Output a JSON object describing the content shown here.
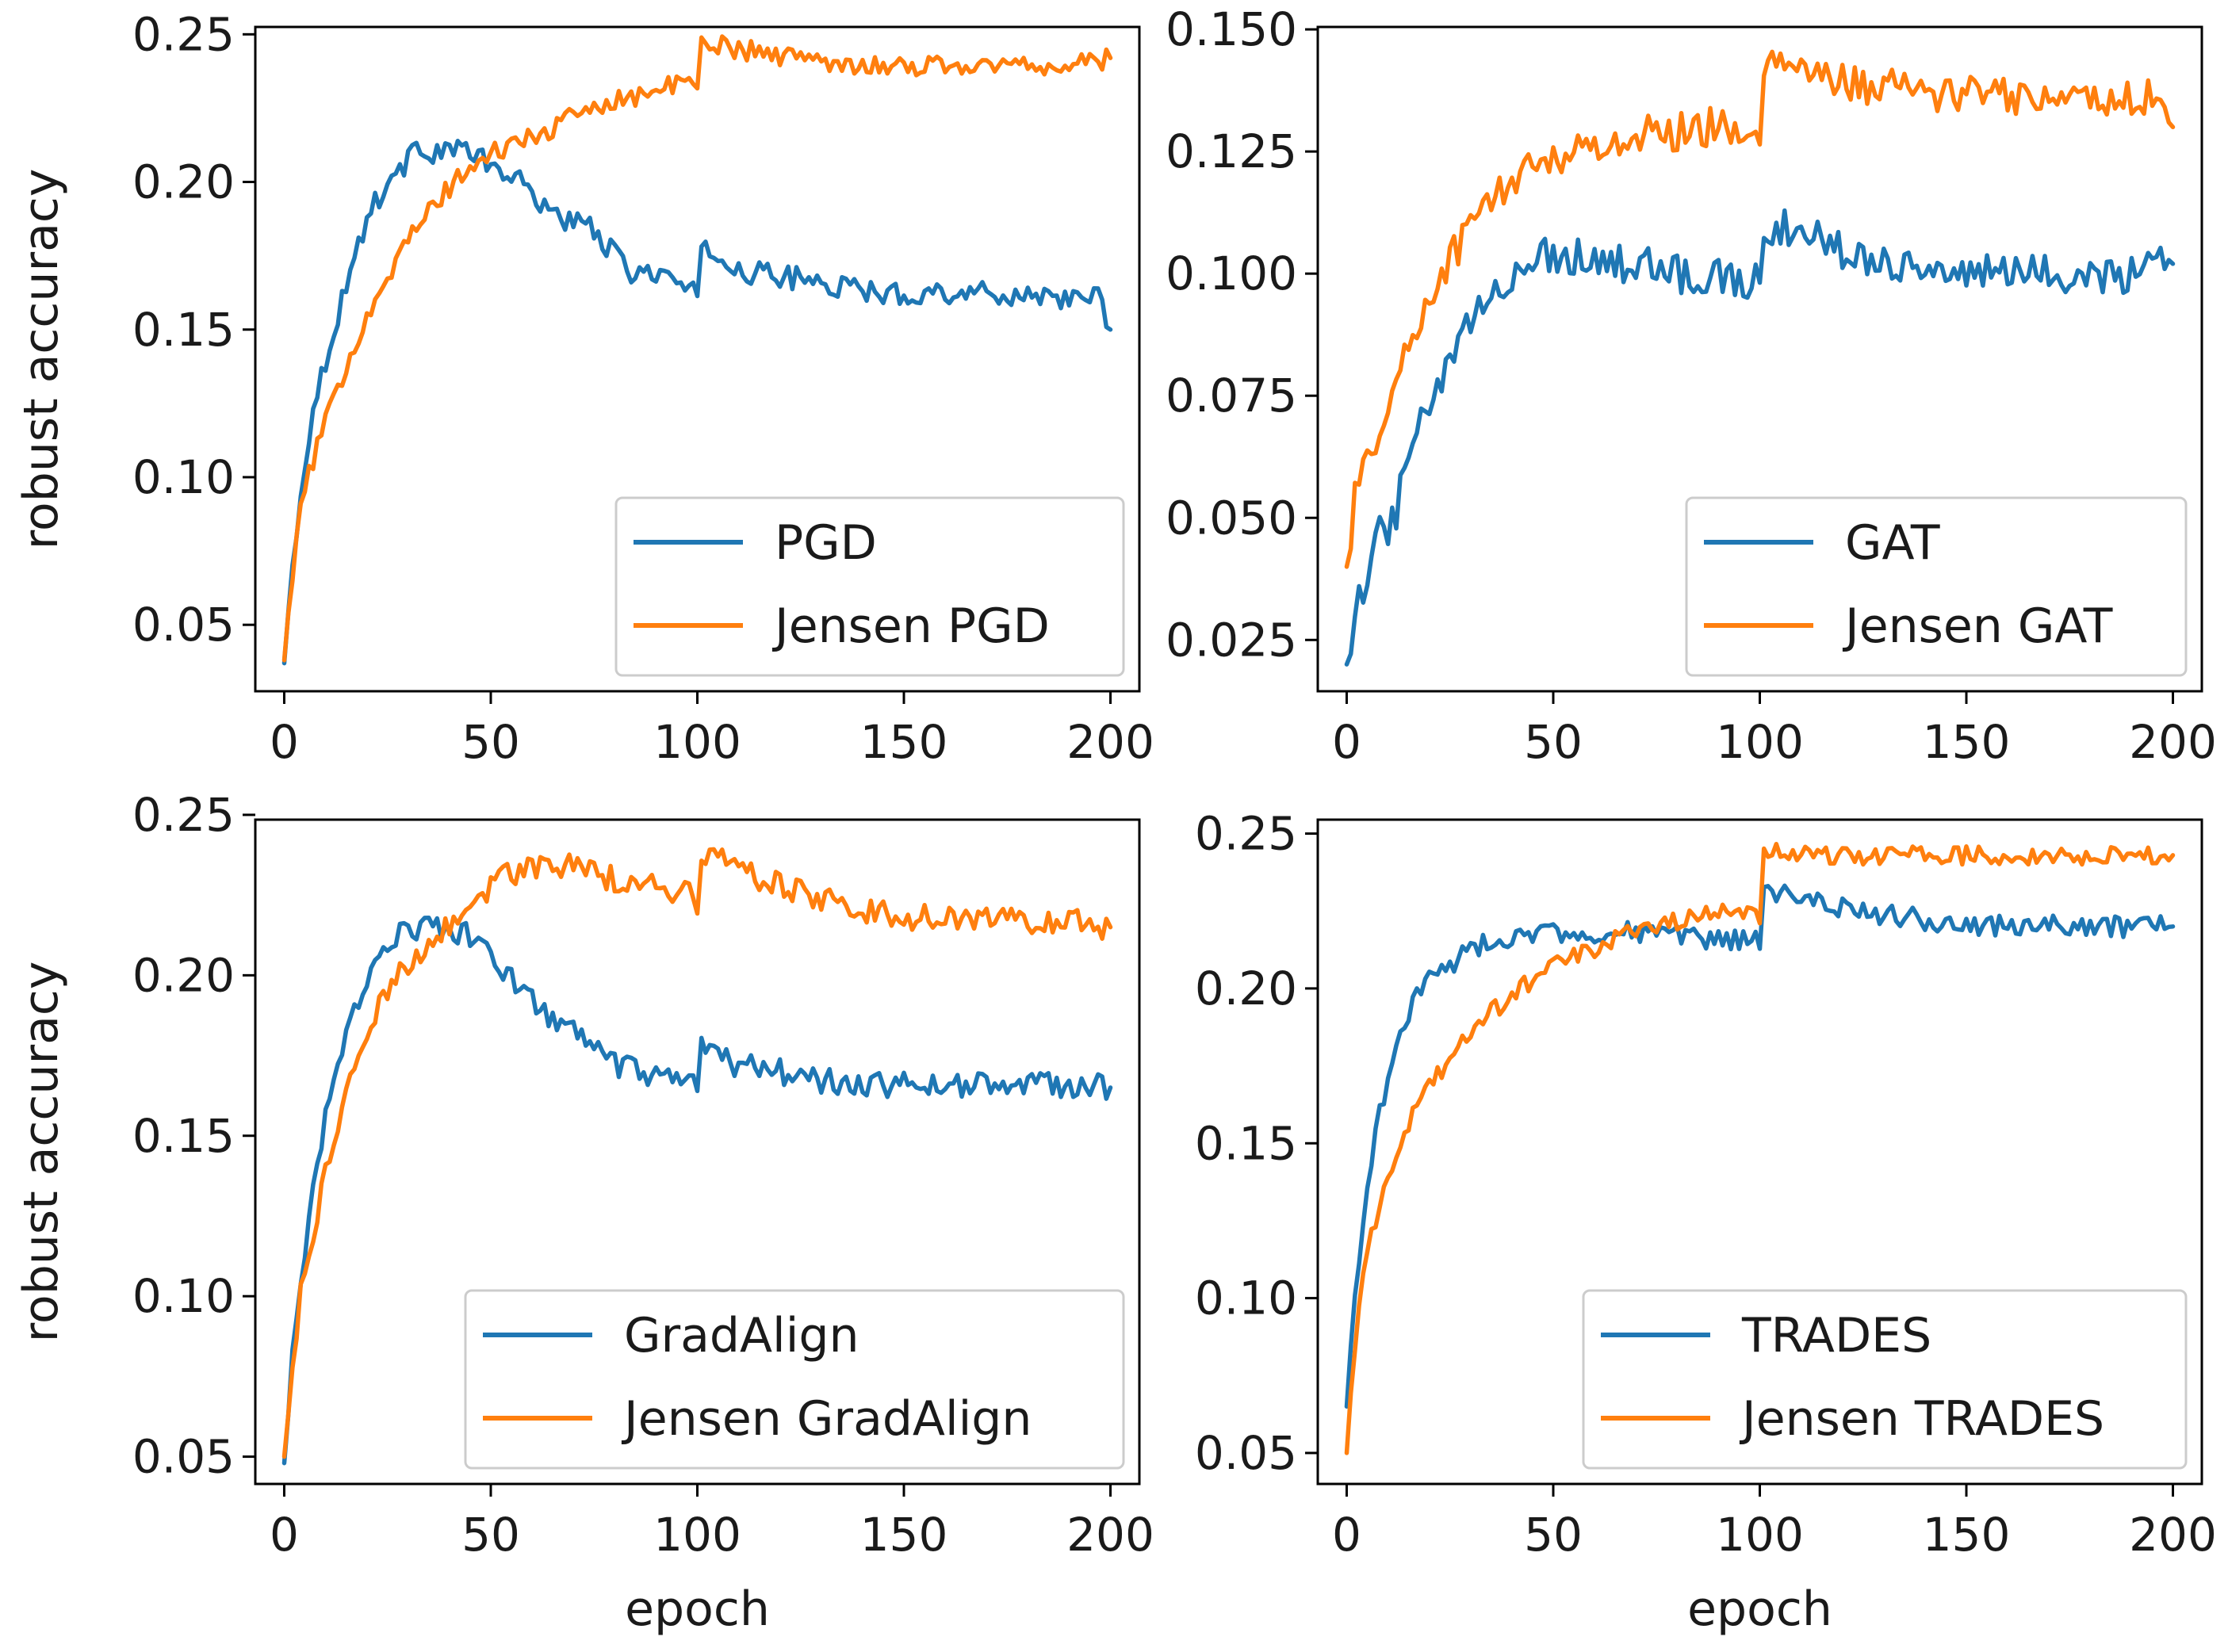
{
  "figure": {
    "background": "#ffffff"
  },
  "colors": {
    "series_a": "#1f77b4",
    "series_b": "#ff7f0e",
    "axis": "#000000",
    "legend_border": "#cccccc"
  },
  "chart_data": [
    {
      "type": "line",
      "panel": "top-left",
      "xlabel": "",
      "ylabel": "robust accuracy",
      "xlim": [
        -7,
        207
      ],
      "ylim": [
        0.0275,
        0.2525
      ],
      "xticks": [
        0,
        50,
        100,
        150,
        200
      ],
      "xtick_labels": [
        "0",
        "50",
        "100",
        "150",
        "200"
      ],
      "yticks": [
        0.05,
        0.1,
        0.15,
        0.2,
        0.25
      ],
      "ytick_labels": [
        "0.05",
        "0.10",
        "0.15",
        "0.20",
        "0.25"
      ],
      "legend": {
        "location": "lower right",
        "entries": [
          "PGD",
          "Jensen PGD"
        ]
      },
      "series": [
        {
          "name": "PGD",
          "color": "#1f77b4",
          "x": [
            0,
            2,
            4,
            6,
            8,
            10,
            13,
            16,
            20,
            25,
            30,
            33,
            36,
            40,
            45,
            50,
            55,
            60,
            65,
            70,
            75,
            80,
            85,
            90,
            95,
            99,
            100,
            101,
            105,
            110,
            120,
            130,
            140,
            150,
            160,
            170,
            180,
            190,
            197,
            200
          ],
          "values": [
            0.037,
            0.07,
            0.095,
            0.115,
            0.128,
            0.14,
            0.155,
            0.17,
            0.188,
            0.2,
            0.207,
            0.213,
            0.21,
            0.212,
            0.21,
            0.205,
            0.202,
            0.196,
            0.19,
            0.186,
            0.184,
            0.175,
            0.168,
            0.17,
            0.166,
            0.162,
            0.158,
            0.178,
            0.175,
            0.17,
            0.168,
            0.166,
            0.163,
            0.162,
            0.163,
            0.162,
            0.162,
            0.161,
            0.16,
            0.15
          ],
          "noise": 0.004
        },
        {
          "name": "Jensen PGD",
          "color": "#ff7f0e",
          "x": [
            0,
            2,
            4,
            6,
            8,
            10,
            13,
            16,
            20,
            25,
            30,
            35,
            40,
            45,
            50,
            55,
            60,
            65,
            70,
            75,
            80,
            85,
            90,
            95,
            99,
            100,
            101,
            105,
            110,
            120,
            130,
            140,
            150,
            160,
            170,
            180,
            190,
            200
          ],
          "values": [
            0.038,
            0.068,
            0.088,
            0.102,
            0.11,
            0.118,
            0.13,
            0.142,
            0.155,
            0.168,
            0.18,
            0.19,
            0.198,
            0.205,
            0.209,
            0.213,
            0.215,
            0.218,
            0.222,
            0.226,
            0.228,
            0.229,
            0.231,
            0.233,
            0.234,
            0.232,
            0.246,
            0.247,
            0.245,
            0.243,
            0.241,
            0.24,
            0.239,
            0.24,
            0.239,
            0.24,
            0.239,
            0.242
          ],
          "noise": 0.0035
        }
      ]
    },
    {
      "type": "line",
      "panel": "top-right",
      "xlabel": "",
      "ylabel": "",
      "xlim": [
        -7,
        207
      ],
      "ylim": [
        0.0145,
        0.1505
      ],
      "xticks": [
        0,
        50,
        100,
        150,
        200
      ],
      "xtick_labels": [
        "0",
        "50",
        "100",
        "150",
        "200"
      ],
      "yticks": [
        0.025,
        0.05,
        0.075,
        0.1,
        0.125,
        0.15
      ],
      "ytick_labels": [
        "0.025",
        "0.050",
        "0.075",
        "0.100",
        "0.125",
        "0.150"
      ],
      "legend": {
        "location": "lower right",
        "entries": [
          "GAT",
          "Jensen GAT"
        ]
      },
      "series": [
        {
          "name": "GAT",
          "color": "#1f77b4",
          "x": [
            0,
            2,
            5,
            8,
            10,
            15,
            20,
            25,
            30,
            35,
            40,
            45,
            50,
            55,
            60,
            65,
            70,
            75,
            80,
            85,
            90,
            95,
            99,
            100,
            101,
            105,
            110,
            120,
            130,
            140,
            150,
            160,
            170,
            180,
            190,
            200
          ],
          "values": [
            0.02,
            0.032,
            0.035,
            0.05,
            0.045,
            0.062,
            0.073,
            0.081,
            0.09,
            0.095,
            0.1,
            0.103,
            0.104,
            0.104,
            0.103,
            0.102,
            0.102,
            0.101,
            0.1,
            0.1,
            0.099,
            0.099,
            0.098,
            0.096,
            0.11,
            0.11,
            0.108,
            0.105,
            0.103,
            0.101,
            0.1,
            0.1,
            0.1,
            0.1,
            0.1,
            0.102
          ],
          "noise": 0.004
        },
        {
          "name": "Jensen GAT",
          "color": "#ff7f0e",
          "x": [
            0,
            2,
            5,
            8,
            10,
            15,
            20,
            25,
            30,
            35,
            40,
            45,
            50,
            55,
            60,
            65,
            70,
            75,
            80,
            85,
            90,
            95,
            99,
            100,
            101,
            105,
            110,
            120,
            130,
            140,
            150,
            160,
            170,
            180,
            190,
            197,
            200
          ],
          "values": [
            0.04,
            0.055,
            0.06,
            0.07,
            0.072,
            0.085,
            0.095,
            0.103,
            0.11,
            0.115,
            0.119,
            0.122,
            0.124,
            0.125,
            0.126,
            0.127,
            0.128,
            0.129,
            0.129,
            0.13,
            0.13,
            0.13,
            0.13,
            0.128,
            0.14,
            0.143,
            0.142,
            0.139,
            0.138,
            0.137,
            0.137,
            0.136,
            0.136,
            0.136,
            0.136,
            0.136,
            0.13
          ],
          "noise": 0.004
        }
      ]
    },
    {
      "type": "line",
      "panel": "bottom-left",
      "xlabel": "epoch",
      "ylabel": "robust accuracy",
      "xlim": [
        -7,
        207
      ],
      "ylim": [
        0.0415,
        0.2485
      ],
      "xticks": [
        0,
        50,
        100,
        150,
        200
      ],
      "xtick_labels": [
        "0",
        "50",
        "100",
        "150",
        "200"
      ],
      "yticks": [
        0.05,
        0.1,
        0.15,
        0.2,
        0.25
      ],
      "ytick_labels": [
        "0.05",
        "0.10",
        "0.15",
        "0.20",
        "0.25"
      ],
      "legend": {
        "location": "lower right",
        "entries": [
          "GradAlign",
          "Jensen GradAlign"
        ]
      },
      "series": [
        {
          "name": "GradAlign",
          "color": "#1f77b4",
          "x": [
            0,
            2,
            4,
            6,
            8,
            10,
            13,
            16,
            20,
            25,
            30,
            35,
            40,
            45,
            50,
            55,
            60,
            65,
            70,
            75,
            80,
            85,
            90,
            95,
            99,
            100,
            101,
            105,
            110,
            120,
            130,
            140,
            150,
            160,
            170,
            180,
            190,
            200
          ],
          "values": [
            0.048,
            0.08,
            0.105,
            0.125,
            0.14,
            0.155,
            0.17,
            0.185,
            0.2,
            0.21,
            0.215,
            0.215,
            0.214,
            0.212,
            0.205,
            0.2,
            0.192,
            0.186,
            0.182,
            0.178,
            0.172,
            0.17,
            0.168,
            0.166,
            0.165,
            0.163,
            0.178,
            0.175,
            0.172,
            0.17,
            0.167,
            0.166,
            0.166,
            0.166,
            0.166,
            0.166,
            0.166,
            0.165
          ],
          "noise": 0.004
        },
        {
          "name": "Jensen GradAlign",
          "color": "#ff7f0e",
          "x": [
            0,
            2,
            4,
            6,
            8,
            10,
            13,
            16,
            20,
            25,
            30,
            35,
            40,
            45,
            50,
            55,
            60,
            65,
            70,
            75,
            80,
            85,
            90,
            95,
            99,
            100,
            101,
            105,
            110,
            120,
            130,
            140,
            150,
            160,
            170,
            180,
            190,
            200
          ],
          "values": [
            0.05,
            0.078,
            0.1,
            0.115,
            0.125,
            0.138,
            0.152,
            0.168,
            0.183,
            0.195,
            0.204,
            0.21,
            0.216,
            0.222,
            0.228,
            0.232,
            0.233,
            0.234,
            0.234,
            0.232,
            0.23,
            0.229,
            0.228,
            0.226,
            0.225,
            0.222,
            0.238,
            0.237,
            0.233,
            0.228,
            0.224,
            0.22,
            0.218,
            0.218,
            0.217,
            0.217,
            0.217,
            0.215
          ],
          "noise": 0.004
        }
      ]
    },
    {
      "type": "line",
      "panel": "bottom-right",
      "xlabel": "epoch",
      "ylabel": "",
      "xlim": [
        -7,
        207
      ],
      "ylim": [
        0.04,
        0.2545
      ],
      "xticks": [
        0,
        50,
        100,
        150,
        200
      ],
      "xtick_labels": [
        "0",
        "50",
        "100",
        "150",
        "200"
      ],
      "yticks": [
        0.05,
        0.1,
        0.15,
        0.2,
        0.25
      ],
      "ytick_labels": [
        "0.05",
        "0.10",
        "0.15",
        "0.20",
        "0.25"
      ],
      "legend": {
        "location": "lower right",
        "entries": [
          "TRADES",
          "Jensen TRADES"
        ]
      },
      "series": [
        {
          "name": "TRADES",
          "color": "#1f77b4",
          "x": [
            0,
            2,
            4,
            6,
            8,
            10,
            13,
            16,
            20,
            25,
            30,
            35,
            40,
            45,
            50,
            55,
            60,
            65,
            70,
            75,
            80,
            85,
            90,
            95,
            99,
            100,
            101,
            105,
            110,
            120,
            130,
            140,
            150,
            160,
            170,
            180,
            190,
            200
          ],
          "values": [
            0.065,
            0.1,
            0.125,
            0.145,
            0.16,
            0.172,
            0.185,
            0.195,
            0.203,
            0.208,
            0.212,
            0.215,
            0.217,
            0.218,
            0.218,
            0.218,
            0.218,
            0.218,
            0.218,
            0.217,
            0.217,
            0.216,
            0.216,
            0.215,
            0.215,
            0.213,
            0.233,
            0.231,
            0.228,
            0.226,
            0.224,
            0.222,
            0.221,
            0.22,
            0.22,
            0.22,
            0.22,
            0.22
          ],
          "noise": 0.0035
        },
        {
          "name": "Jensen TRADES",
          "color": "#ff7f0e",
          "x": [
            0,
            2,
            4,
            6,
            8,
            10,
            13,
            16,
            20,
            25,
            30,
            35,
            40,
            45,
            50,
            55,
            60,
            65,
            70,
            75,
            80,
            85,
            90,
            95,
            99,
            100,
            101,
            105,
            110,
            120,
            130,
            140,
            150,
            160,
            170,
            180,
            190,
            200
          ],
          "values": [
            0.05,
            0.085,
            0.105,
            0.12,
            0.13,
            0.14,
            0.15,
            0.16,
            0.168,
            0.177,
            0.185,
            0.192,
            0.198,
            0.203,
            0.207,
            0.21,
            0.213,
            0.216,
            0.219,
            0.221,
            0.222,
            0.223,
            0.224,
            0.225,
            0.226,
            0.224,
            0.243,
            0.244,
            0.243,
            0.243,
            0.243,
            0.243,
            0.243,
            0.243,
            0.243,
            0.243,
            0.243,
            0.243
          ],
          "noise": 0.003
        }
      ]
    }
  ]
}
